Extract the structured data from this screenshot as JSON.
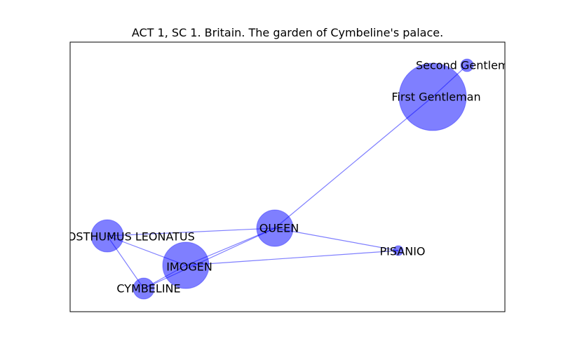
{
  "title": "ACT 1, SC 1. Britain. The garden of Cymbeline's palace.",
  "colors": {
    "node_fill": "#0000ff",
    "node_fill_opacity": 0.5,
    "edge": "#0000ff",
    "edge_opacity": 0.5,
    "frame": "#000000",
    "label": "#000000"
  },
  "graph": {
    "nodes": [
      {
        "id": "second-gentleman",
        "label": "Second Gentleman"
      },
      {
        "id": "first-gentleman",
        "label": "First Gentleman"
      },
      {
        "id": "queen",
        "label": "QUEEN"
      },
      {
        "id": "posthumus-leonatus",
        "label": "POSTHUMUS LEONATUS"
      },
      {
        "id": "pisanio",
        "label": "PISANIO"
      },
      {
        "id": "imogen",
        "label": "IMOGEN"
      },
      {
        "id": "cymbeline",
        "label": "CYMBELINE"
      }
    ],
    "edges": [
      [
        "second-gentleman",
        "first-gentleman"
      ],
      [
        "first-gentleman",
        "queen"
      ],
      [
        "queen",
        "posthumus-leonatus"
      ],
      [
        "queen",
        "pisanio"
      ],
      [
        "queen",
        "imogen"
      ],
      [
        "queen",
        "cymbeline"
      ],
      [
        "posthumus-leonatus",
        "imogen"
      ],
      [
        "posthumus-leonatus",
        "cymbeline"
      ],
      [
        "imogen",
        "pisanio"
      ],
      [
        "imogen",
        "cymbeline"
      ]
    ]
  }
}
